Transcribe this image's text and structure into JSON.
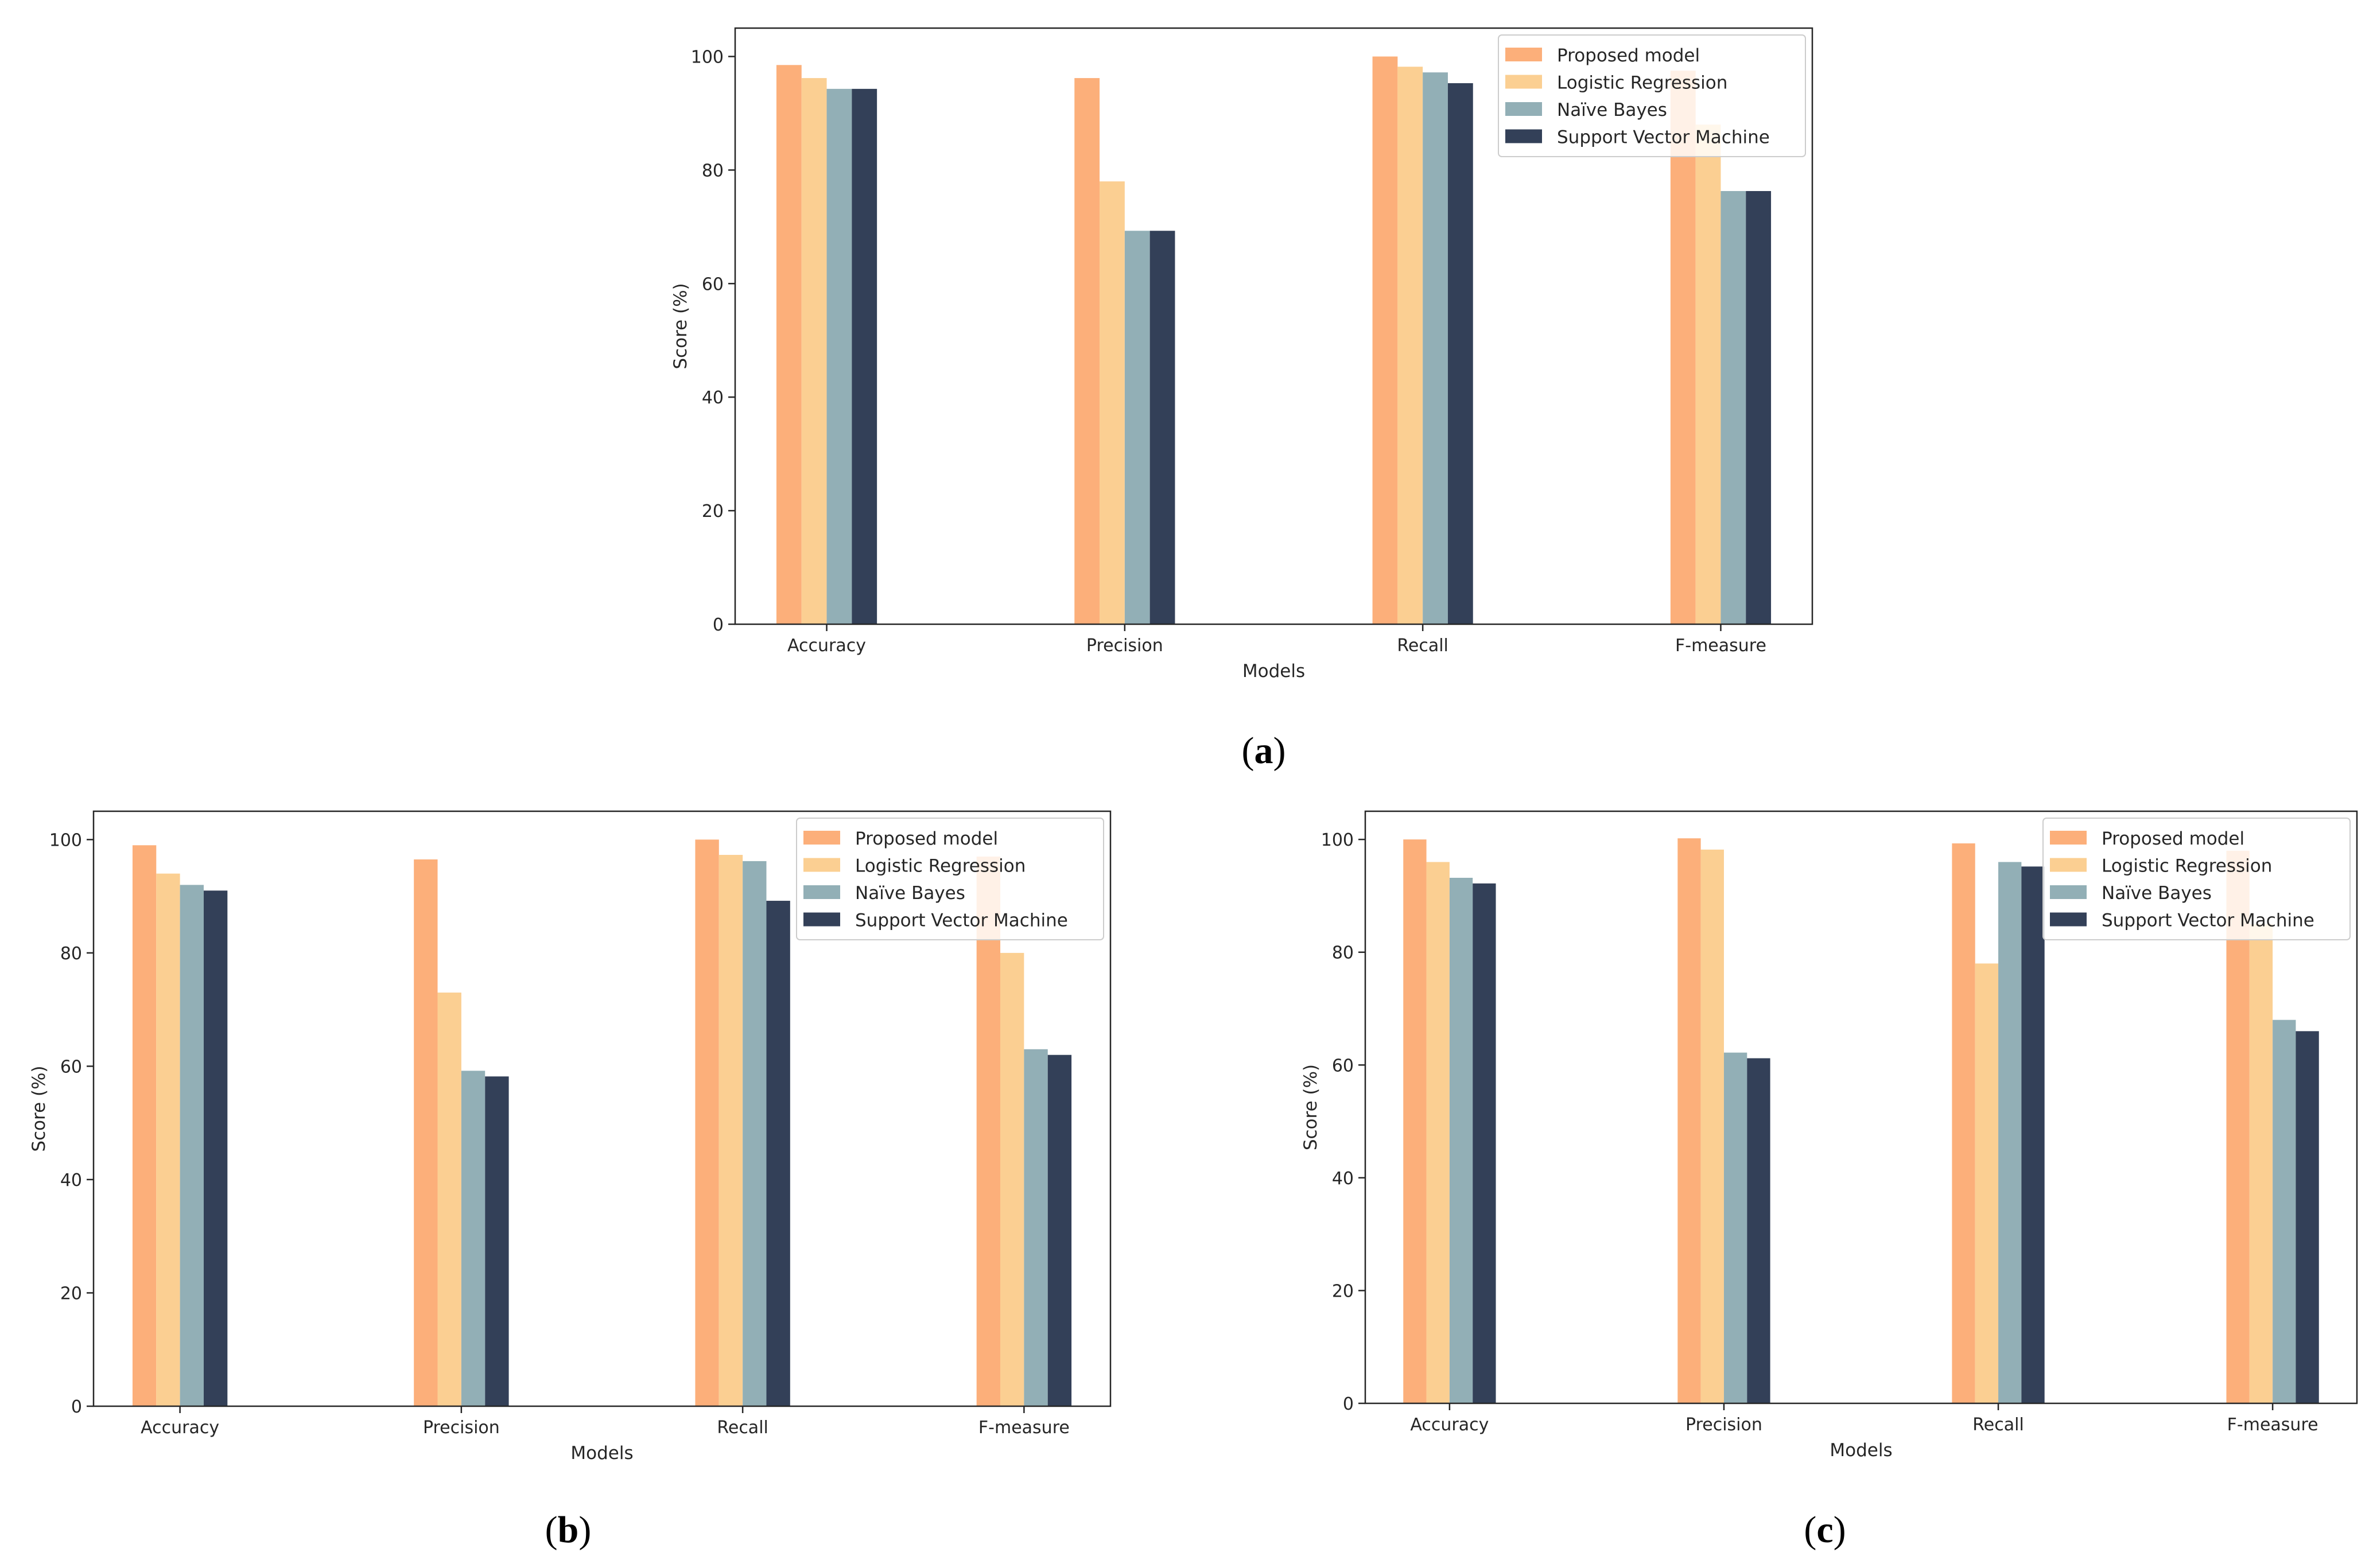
{
  "colors": {
    "proposed": "#FCAF7A",
    "logistic": "#FBCF92",
    "naive_bayes": "#92AFB6",
    "svm": "#334058",
    "axis": "#262626"
  },
  "chart_data": [
    {
      "id": "a",
      "type": "bar",
      "caption": "(a)",
      "caption_letter": "a",
      "xlabel": "Models",
      "ylabel": "Score (%)",
      "ylim": [
        0,
        105
      ],
      "yticks": [
        0,
        20,
        40,
        60,
        80,
        100
      ],
      "categories": [
        "Accuracy",
        "Precision",
        "Recall",
        "F-measure"
      ],
      "legend_loc": "top-right",
      "series": [
        {
          "name": "Proposed model",
          "color_key": "proposed",
          "values": [
            98.5,
            96.2,
            100,
            97.5
          ]
        },
        {
          "name": "Logistic Regression",
          "color_key": "logistic",
          "values": [
            96.2,
            78,
            98.2,
            88
          ]
        },
        {
          "name": "Naïve Bayes",
          "color_key": "naive_bayes",
          "values": [
            94.3,
            69.3,
            97.2,
            76.3
          ]
        },
        {
          "name": "Support Vector Machine",
          "color_key": "svm",
          "values": [
            94.3,
            69.3,
            95.3,
            76.3
          ]
        }
      ]
    },
    {
      "id": "b",
      "type": "bar",
      "caption": "(b)",
      "caption_letter": "b",
      "xlabel": "Models",
      "ylabel": "Score (%)",
      "ylim": [
        0,
        105
      ],
      "yticks": [
        0,
        20,
        40,
        60,
        80,
        100
      ],
      "categories": [
        "Accuracy",
        "Precision",
        "Recall",
        "F-measure"
      ],
      "legend_loc": "top-right",
      "series": [
        {
          "name": "Proposed model",
          "color_key": "proposed",
          "values": [
            99,
            96.5,
            100,
            97
          ]
        },
        {
          "name": "Logistic Regression",
          "color_key": "logistic",
          "values": [
            94,
            73,
            97.3,
            80
          ]
        },
        {
          "name": "Naïve Bayes",
          "color_key": "naive_bayes",
          "values": [
            92,
            59.2,
            96.2,
            63
          ]
        },
        {
          "name": "Support Vector Machine",
          "color_key": "svm",
          "values": [
            91,
            58.2,
            89.2,
            62
          ]
        }
      ]
    },
    {
      "id": "c",
      "type": "bar",
      "caption": "(c)",
      "caption_letter": "c",
      "xlabel": "Models",
      "ylabel": "Score (%)",
      "ylim": [
        0,
        105
      ],
      "yticks": [
        0,
        20,
        40,
        60,
        80,
        100
      ],
      "categories": [
        "Accuracy",
        "Precision",
        "Recall",
        "F-measure"
      ],
      "legend_loc": "top-right",
      "series": [
        {
          "name": "Proposed model",
          "color_key": "proposed",
          "values": [
            100,
            100.2,
            99.3,
            98
          ]
        },
        {
          "name": "Logistic Regression",
          "color_key": "logistic",
          "values": [
            96,
            98.2,
            78,
            85
          ]
        },
        {
          "name": "Naïve Bayes",
          "color_key": "naive_bayes",
          "values": [
            93.2,
            62.2,
            96,
            68
          ]
        },
        {
          "name": "Support Vector Machine",
          "color_key": "svm",
          "values": [
            92.2,
            61.2,
            95.2,
            66
          ]
        }
      ]
    }
  ]
}
